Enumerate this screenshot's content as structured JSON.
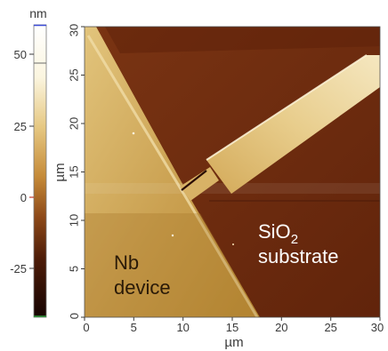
{
  "colorbar": {
    "unit": "nm",
    "ticks": [
      "50",
      "25",
      "0",
      "-25"
    ]
  },
  "axes": {
    "x_ticks": [
      "0",
      "5",
      "10",
      "15",
      "20",
      "25",
      "30"
    ],
    "y_ticks": [
      "0",
      "5",
      "10",
      "15",
      "20",
      "25",
      "30"
    ],
    "xlabel": "µm",
    "ylabel": "µm"
  },
  "annotations": {
    "substrate_line1_main": "SiO",
    "substrate_line1_sub": "2",
    "substrate_line2": "substrate",
    "device_line1": "Nb",
    "device_line2": "device"
  },
  "colors": {
    "substrate": "#6e2a0e",
    "device_high": "#e9cf8a",
    "device_low": "#b07a22",
    "flake_light": "#f4e6bc",
    "gap_dark": "#2a0c04",
    "colorbar_top_marker": "#3b4bd6",
    "colorbar_bottom_marker": "#2f9a3b"
  }
}
